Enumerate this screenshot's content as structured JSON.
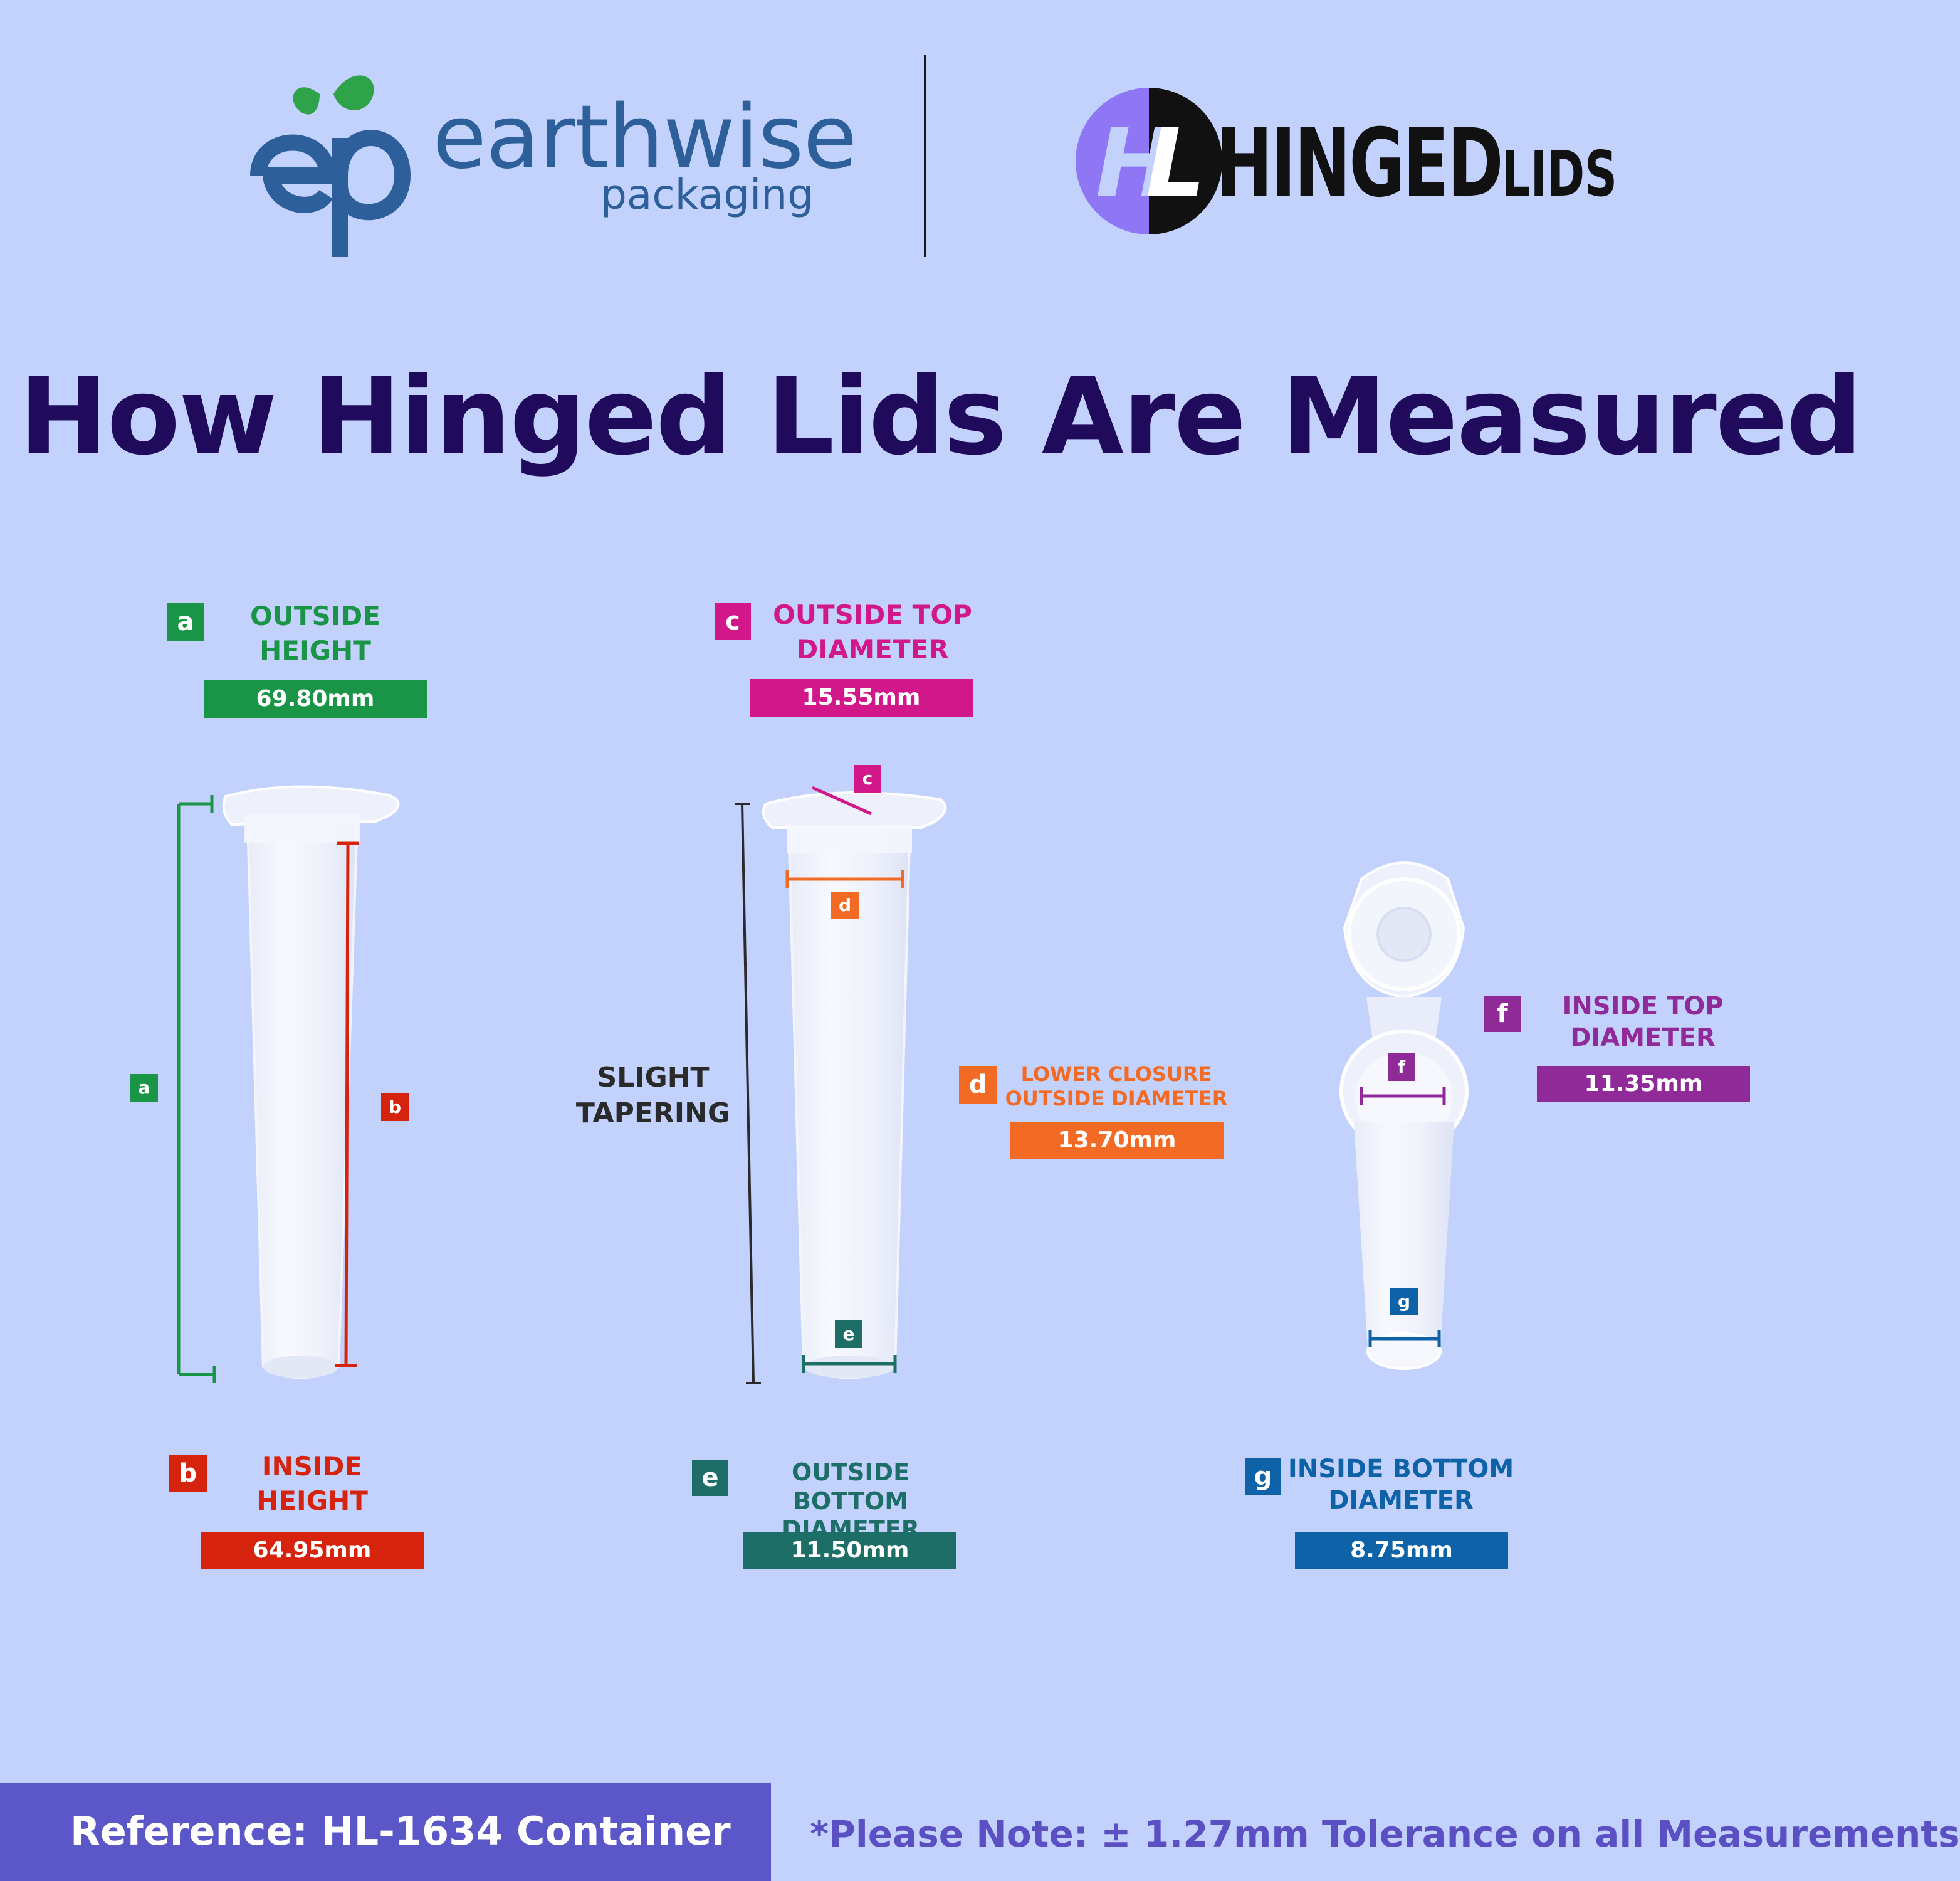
{
  "header": {
    "earthwise": {
      "mark": "ep",
      "word": "earthwise",
      "sub": "packaging"
    },
    "hinged": {
      "mark": "HL",
      "word": "HINGED",
      "small": "LIDS"
    }
  },
  "title": "How Hinged Lids Are Measured",
  "measurements": [
    {
      "key": "a",
      "label_lines": [
        "OUTSIDE",
        "HEIGHT"
      ],
      "value": "69.80mm",
      "color": "#1a9447"
    },
    {
      "key": "b",
      "label_lines": [
        "INSIDE",
        "HEIGHT"
      ],
      "value": "64.95mm",
      "color": "#d5230e"
    },
    {
      "key": "c",
      "label_lines": [
        "OUTSIDE TOP",
        "DIAMETER"
      ],
      "value": "15.55mm",
      "color": "#d2178a"
    },
    {
      "key": "d",
      "label_lines": [
        "LOWER CLOSURE",
        "OUTSIDE DIAMETER"
      ],
      "value": "13.70mm",
      "color": "#f36a24"
    },
    {
      "key": "e",
      "label_lines": [
        "OUTSIDE BOTTOM",
        "DIAMETER"
      ],
      "value": "11.50mm",
      "color": "#1d6e66"
    },
    {
      "key": "f",
      "label_lines": [
        "INSIDE TOP",
        "DIAMETER"
      ],
      "value": "11.35mm",
      "color": "#8f2a98"
    },
    {
      "key": "g",
      "label_lines": [
        "INSIDE BOTTOM",
        "DIAMETER"
      ],
      "value": "8.75mm",
      "color": "#0e63a8"
    }
  ],
  "note_tapering": [
    "SLIGHT",
    "TAPERING"
  ],
  "footer": {
    "reference": "Reference: HL-1634 Container",
    "note": "*Please Note: ± 1.27mm Tolerance on all Measurements"
  }
}
